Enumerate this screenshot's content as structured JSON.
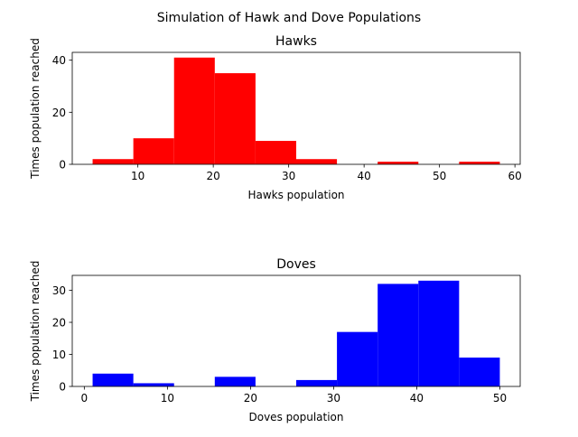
{
  "figure": {
    "suptitle": "Simulation of Hawk and Dove Populations"
  },
  "chart_data": [
    {
      "type": "bar",
      "title": "Hawks",
      "xlabel": "Hawks population",
      "ylabel": "Times population reached",
      "color": "#ff0000",
      "xlim": [
        1.3,
        60.7
      ],
      "ylim": [
        0,
        43
      ],
      "xticks": [
        10,
        20,
        30,
        40,
        50,
        60
      ],
      "yticks": [
        0,
        20,
        40
      ],
      "bins": [
        {
          "x0": 4.0,
          "x1": 9.4,
          "value": 2
        },
        {
          "x0": 9.4,
          "x1": 14.8,
          "value": 10
        },
        {
          "x0": 14.8,
          "x1": 20.2,
          "value": 41
        },
        {
          "x0": 20.2,
          "x1": 25.6,
          "value": 35
        },
        {
          "x0": 25.6,
          "x1": 31.0,
          "value": 9
        },
        {
          "x0": 31.0,
          "x1": 36.4,
          "value": 2
        },
        {
          "x0": 36.4,
          "x1": 41.8,
          "value": 0
        },
        {
          "x0": 41.8,
          "x1": 47.2,
          "value": 1
        },
        {
          "x0": 47.2,
          "x1": 52.6,
          "value": 0
        },
        {
          "x0": 52.6,
          "x1": 58.0,
          "value": 1
        }
      ]
    },
    {
      "type": "bar",
      "title": "Doves",
      "xlabel": "Doves population",
      "ylabel": "Times population reached",
      "color": "#0000ff",
      "xlim": [
        -1.45,
        52.45
      ],
      "ylim": [
        0,
        34.65
      ],
      "xticks": [
        0,
        10,
        20,
        30,
        40,
        50
      ],
      "yticks": [
        0,
        10,
        20,
        30
      ],
      "bins": [
        {
          "x0": 1.0,
          "x1": 5.9,
          "value": 4
        },
        {
          "x0": 5.9,
          "x1": 10.8,
          "value": 1
        },
        {
          "x0": 10.8,
          "x1": 15.7,
          "value": 0
        },
        {
          "x0": 15.7,
          "x1": 20.6,
          "value": 3
        },
        {
          "x0": 20.6,
          "x1": 25.5,
          "value": 0
        },
        {
          "x0": 25.5,
          "x1": 30.4,
          "value": 2
        },
        {
          "x0": 30.4,
          "x1": 35.3,
          "value": 17
        },
        {
          "x0": 35.3,
          "x1": 40.2,
          "value": 32
        },
        {
          "x0": 40.2,
          "x1": 45.1,
          "value": 33
        },
        {
          "x0": 45.1,
          "x1": 50.0,
          "value": 9
        }
      ]
    }
  ]
}
